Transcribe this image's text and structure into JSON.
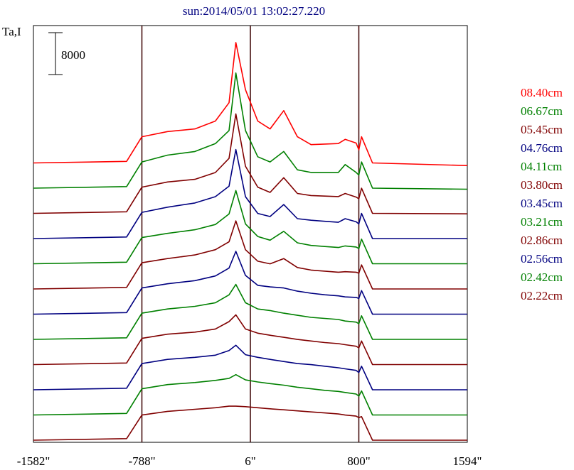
{
  "chart_data": {
    "type": "line",
    "title": "sun:2014/05/01 13:02:27.220",
    "ylabel": "Ta,I",
    "scale_bar_label": "8000",
    "scale_bar_value": 8000,
    "x_ticks": [
      {
        "value": -1582,
        "label": "-1582\""
      },
      {
        "value": -788,
        "label": "-788\""
      },
      {
        "value": 6,
        "label": "6\""
      },
      {
        "value": 800,
        "label": "800\""
      },
      {
        "value": 1594,
        "label": "1594\""
      }
    ],
    "xlim": [
      -1582,
      1594
    ],
    "vertical_lines": [
      -788,
      6,
      800
    ],
    "grid": false,
    "legend_position": "right",
    "series": [
      {
        "name": "08.40cm",
        "color": "#ff0000",
        "values": [
          0,
          300,
          5000,
          6000,
          6500,
          8000,
          11500,
          23000,
          14000,
          8000,
          6500,
          10000,
          5000,
          3500,
          3600,
          3700,
          4500,
          3800,
          2500,
          5000,
          0,
          -500
        ]
      },
      {
        "name": "06.67cm",
        "color": "#008000",
        "values": [
          0,
          300,
          5000,
          6300,
          7000,
          8500,
          11000,
          22000,
          11000,
          6000,
          5000,
          7000,
          3500,
          3000,
          3000,
          3000,
          4500,
          3000,
          2500,
          5000,
          0,
          -200
        ]
      },
      {
        "name": "05.45cm",
        "color": "#800000",
        "values": [
          0,
          300,
          5000,
          6000,
          6500,
          7800,
          10500,
          19000,
          9000,
          5000,
          4000,
          6800,
          3800,
          3400,
          3300,
          3200,
          3800,
          3100,
          2800,
          4800,
          0,
          -100
        ]
      },
      {
        "name": "04.76cm",
        "color": "#000080",
        "values": [
          0,
          300,
          5000,
          6000,
          6800,
          8000,
          10000,
          17000,
          8000,
          4800,
          4200,
          6500,
          3800,
          3500,
          3300,
          3100,
          3800,
          3200,
          2800,
          4800,
          0,
          0
        ]
      },
      {
        "name": "04.11cm",
        "color": "#008000",
        "values": [
          0,
          300,
          5000,
          5800,
          6500,
          7500,
          9500,
          14000,
          7600,
          5200,
          4500,
          6200,
          4000,
          3500,
          3300,
          3100,
          3400,
          3200,
          2900,
          4700,
          0,
          0
        ]
      },
      {
        "name": "03.80cm",
        "color": "#800000",
        "values": [
          0,
          300,
          5000,
          5800,
          6500,
          7500,
          9000,
          13000,
          7500,
          5300,
          4800,
          5800,
          4100,
          3600,
          3400,
          3200,
          3300,
          3200,
          3000,
          4600,
          0,
          0
        ]
      },
      {
        "name": "03.45cm",
        "color": "#000080",
        "values": [
          0,
          300,
          5000,
          5800,
          6400,
          7300,
          8800,
          12000,
          7400,
          5500,
          5200,
          5000,
          4400,
          4000,
          3700,
          3500,
          3300,
          3200,
          3000,
          4500,
          0,
          0
        ]
      },
      {
        "name": "03.21cm",
        "color": "#008000",
        "values": [
          0,
          300,
          5000,
          5800,
          6300,
          7000,
          8500,
          10500,
          7000,
          5800,
          5500,
          5000,
          4600,
          4200,
          4000,
          3800,
          3500,
          3300,
          3000,
          4500,
          0,
          0
        ]
      },
      {
        "name": "02.86cm",
        "color": "#800000",
        "values": [
          0,
          300,
          5000,
          5800,
          6200,
          6800,
          8200,
          9500,
          6800,
          6000,
          5600,
          5200,
          4800,
          4500,
          4200,
          4000,
          3800,
          3500,
          3200,
          4500,
          0,
          0
        ]
      },
      {
        "name": "02.56cm",
        "color": "#000080",
        "values": [
          0,
          300,
          5000,
          5800,
          6200,
          6600,
          7500,
          8500,
          6700,
          6200,
          5800,
          5400,
          5000,
          4800,
          4500,
          4200,
          4000,
          3700,
          3300,
          4500,
          0,
          0
        ]
      },
      {
        "name": "02.42cm",
        "color": "#008000",
        "values": [
          0,
          300,
          5000,
          5800,
          6200,
          6600,
          7000,
          7700,
          6700,
          6300,
          6000,
          5700,
          5300,
          5000,
          4700,
          4500,
          4300,
          4000,
          3600,
          4600,
          0,
          0
        ]
      },
      {
        "name": "02.22cm",
        "color": "#800000",
        "values": [
          0,
          300,
          4800,
          5500,
          5900,
          6200,
          6500,
          6500,
          6400,
          6200,
          6000,
          5800,
          5600,
          5400,
          5200,
          5000,
          4800,
          4600,
          4300,
          4500,
          0,
          0
        ]
      }
    ],
    "x": [
      -1582,
      -900,
      -788,
      -600,
      -400,
      -250,
      -150,
      -100,
      -30,
      60,
      150,
      250,
      350,
      450,
      550,
      650,
      700,
      780,
      800,
      820,
      900,
      1594
    ]
  }
}
